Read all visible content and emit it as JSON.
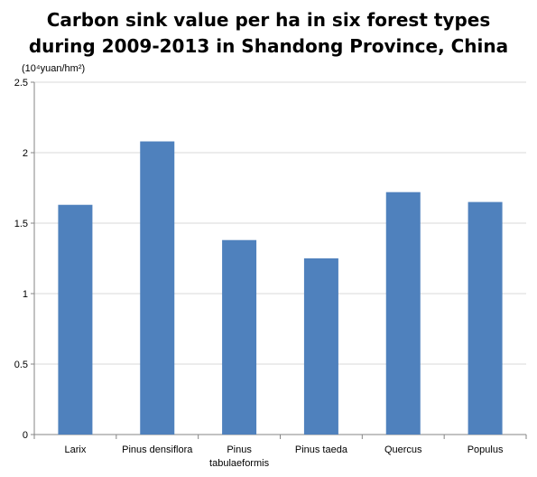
{
  "chart_data": {
    "type": "bar",
    "title_lines": [
      "Carbon sink value per ha in six forest types",
      "during 2009-2013  in Shandong Province, China"
    ],
    "unit_label": "(10⁴yuan/hm²)",
    "categories": [
      [
        "Larix"
      ],
      [
        "Pinus densiflora"
      ],
      [
        "Pinus",
        "tabulaeformis"
      ],
      [
        "Pinus taeda"
      ],
      [
        "Quercus"
      ],
      [
        "Populus"
      ]
    ],
    "values": [
      1.63,
      2.08,
      1.38,
      1.25,
      1.72,
      1.65
    ],
    "y_ticks": [
      "0",
      "0.5",
      "1",
      "1.5",
      "2",
      "2.5"
    ],
    "ylim": [
      0,
      2.5
    ],
    "grid": true,
    "legend": "none",
    "bar_color": "#4F81BD",
    "grid_color": "#D9D9D9",
    "axis_color": "#868686"
  }
}
